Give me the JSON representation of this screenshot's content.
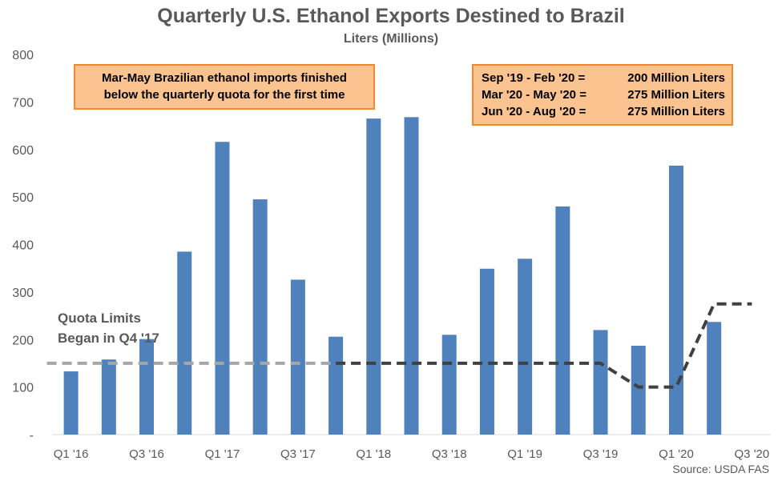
{
  "chart_data": {
    "type": "bar",
    "title": "Quarterly U.S. Ethanol Exports Destined to Brazil",
    "subtitle": "Liters (Millions)",
    "categories": [
      "Q1 '16",
      "Q2 '16",
      "Q3 '16",
      "Q4 '16",
      "Q1 '17",
      "Q2 '17",
      "Q3 '17",
      "Q4 '17",
      "Q1 '18",
      "Q2 '18",
      "Q3 '18",
      "Q4 '18",
      "Q1 '19",
      "Q2 '19",
      "Q3 '19",
      "Q4 '19",
      "Q1 '20",
      "Q2 '20",
      "Q3 '20"
    ],
    "x_tick_labels": [
      "Q1 '16",
      "Q3 '16",
      "Q1 '17",
      "Q3 '17",
      "Q1 '18",
      "Q3 '18",
      "Q1 '19",
      "Q3 '19",
      "Q1 '20",
      "Q3 '20"
    ],
    "series": [
      {
        "type": "bar",
        "color": "#4f81bd",
        "values": [
          133,
          158,
          201,
          385,
          616,
          495,
          326,
          206,
          665,
          668,
          210,
          349,
          370,
          480,
          220,
          187,
          566,
          237,
          null
        ]
      },
      {
        "type": "line",
        "style": "dashed",
        "color": "#404040",
        "color_before_quota": "#a6a6a6",
        "quota_start_index": 7,
        "values": [
          150,
          150,
          150,
          150,
          150,
          150,
          150,
          150,
          150,
          150,
          150,
          150,
          150,
          150,
          150,
          100,
          100,
          275,
          275
        ]
      }
    ],
    "ylim": [
      0,
      800
    ],
    "yticks": [
      0,
      100,
      200,
      300,
      400,
      500,
      600,
      700,
      800
    ],
    "ytick_labels": [
      "-",
      "100",
      "200",
      "300",
      "400",
      "500",
      "600",
      "700",
      "800"
    ],
    "grid": false,
    "legend": "none"
  },
  "annotations": {
    "quota_callout": [
      "Mar-May Brazilian ethanol imports finished",
      "below the quarterly quota for the first time"
    ],
    "quota_limits": [
      {
        "period": "Sep '19 - Feb '20 =",
        "value": "200 Million Liters"
      },
      {
        "period": "Mar '20 - May '20 =",
        "value": "275 Million Liters"
      },
      {
        "period": "Jun '20 - Aug '20 =",
        "value": "275 Million Liters"
      }
    ],
    "quota_note": [
      "Quota Limits",
      "Began in Q4 '17"
    ],
    "source": "Source: USDA FAS"
  },
  "colors": {
    "bars": "#4f81bd",
    "callout_fill": "#fbc38f",
    "callout_border": "#f08a2c",
    "axis_text": "#595959"
  }
}
